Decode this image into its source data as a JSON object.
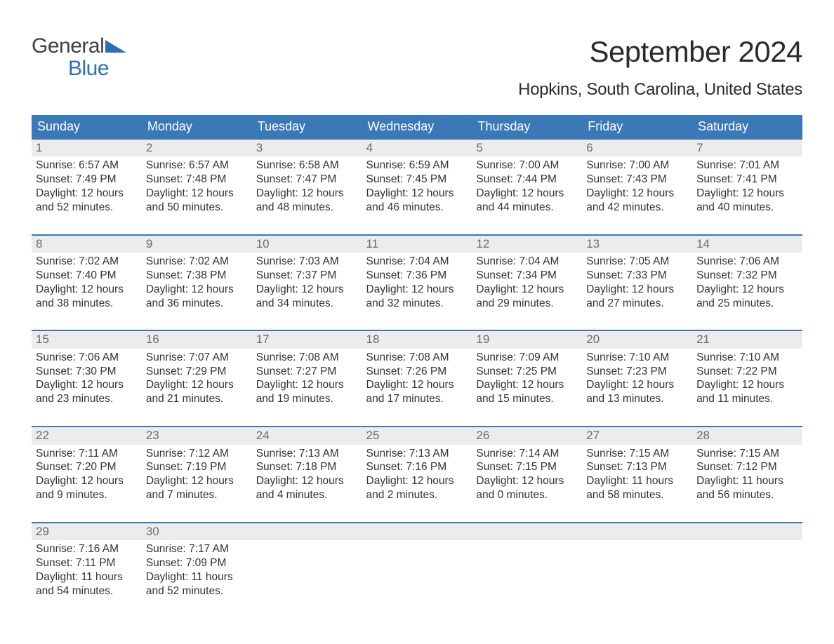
{
  "logo": {
    "line1": "General",
    "line2": "Blue",
    "accent_color": "#2d6fb3",
    "text_color": "#414141"
  },
  "title": "September 2024",
  "location": "Hopkins, South Carolina, United States",
  "colors": {
    "header_bg": "#3a78b8",
    "header_fg": "#ffffff",
    "daynum_bg": "#ececec",
    "daynum_fg": "#6b6b6b",
    "rule": "#3a78b8",
    "body_text": "#333333"
  },
  "day_headers": [
    "Sunday",
    "Monday",
    "Tuesday",
    "Wednesday",
    "Thursday",
    "Friday",
    "Saturday"
  ],
  "weeks": [
    [
      {
        "n": "1",
        "sunrise": "Sunrise: 6:57 AM",
        "sunset": "Sunset: 7:49 PM",
        "d1": "Daylight: 12 hours",
        "d2": "and 52 minutes."
      },
      {
        "n": "2",
        "sunrise": "Sunrise: 6:57 AM",
        "sunset": "Sunset: 7:48 PM",
        "d1": "Daylight: 12 hours",
        "d2": "and 50 minutes."
      },
      {
        "n": "3",
        "sunrise": "Sunrise: 6:58 AM",
        "sunset": "Sunset: 7:47 PM",
        "d1": "Daylight: 12 hours",
        "d2": "and 48 minutes."
      },
      {
        "n": "4",
        "sunrise": "Sunrise: 6:59 AM",
        "sunset": "Sunset: 7:45 PM",
        "d1": "Daylight: 12 hours",
        "d2": "and 46 minutes."
      },
      {
        "n": "5",
        "sunrise": "Sunrise: 7:00 AM",
        "sunset": "Sunset: 7:44 PM",
        "d1": "Daylight: 12 hours",
        "d2": "and 44 minutes."
      },
      {
        "n": "6",
        "sunrise": "Sunrise: 7:00 AM",
        "sunset": "Sunset: 7:43 PM",
        "d1": "Daylight: 12 hours",
        "d2": "and 42 minutes."
      },
      {
        "n": "7",
        "sunrise": "Sunrise: 7:01 AM",
        "sunset": "Sunset: 7:41 PM",
        "d1": "Daylight: 12 hours",
        "d2": "and 40 minutes."
      }
    ],
    [
      {
        "n": "8",
        "sunrise": "Sunrise: 7:02 AM",
        "sunset": "Sunset: 7:40 PM",
        "d1": "Daylight: 12 hours",
        "d2": "and 38 minutes."
      },
      {
        "n": "9",
        "sunrise": "Sunrise: 7:02 AM",
        "sunset": "Sunset: 7:38 PM",
        "d1": "Daylight: 12 hours",
        "d2": "and 36 minutes."
      },
      {
        "n": "10",
        "sunrise": "Sunrise: 7:03 AM",
        "sunset": "Sunset: 7:37 PM",
        "d1": "Daylight: 12 hours",
        "d2": "and 34 minutes."
      },
      {
        "n": "11",
        "sunrise": "Sunrise: 7:04 AM",
        "sunset": "Sunset: 7:36 PM",
        "d1": "Daylight: 12 hours",
        "d2": "and 32 minutes."
      },
      {
        "n": "12",
        "sunrise": "Sunrise: 7:04 AM",
        "sunset": "Sunset: 7:34 PM",
        "d1": "Daylight: 12 hours",
        "d2": "and 29 minutes."
      },
      {
        "n": "13",
        "sunrise": "Sunrise: 7:05 AM",
        "sunset": "Sunset: 7:33 PM",
        "d1": "Daylight: 12 hours",
        "d2": "and 27 minutes."
      },
      {
        "n": "14",
        "sunrise": "Sunrise: 7:06 AM",
        "sunset": "Sunset: 7:32 PM",
        "d1": "Daylight: 12 hours",
        "d2": "and 25 minutes."
      }
    ],
    [
      {
        "n": "15",
        "sunrise": "Sunrise: 7:06 AM",
        "sunset": "Sunset: 7:30 PM",
        "d1": "Daylight: 12 hours",
        "d2": "and 23 minutes."
      },
      {
        "n": "16",
        "sunrise": "Sunrise: 7:07 AM",
        "sunset": "Sunset: 7:29 PM",
        "d1": "Daylight: 12 hours",
        "d2": "and 21 minutes."
      },
      {
        "n": "17",
        "sunrise": "Sunrise: 7:08 AM",
        "sunset": "Sunset: 7:27 PM",
        "d1": "Daylight: 12 hours",
        "d2": "and 19 minutes."
      },
      {
        "n": "18",
        "sunrise": "Sunrise: 7:08 AM",
        "sunset": "Sunset: 7:26 PM",
        "d1": "Daylight: 12 hours",
        "d2": "and 17 minutes."
      },
      {
        "n": "19",
        "sunrise": "Sunrise: 7:09 AM",
        "sunset": "Sunset: 7:25 PM",
        "d1": "Daylight: 12 hours",
        "d2": "and 15 minutes."
      },
      {
        "n": "20",
        "sunrise": "Sunrise: 7:10 AM",
        "sunset": "Sunset: 7:23 PM",
        "d1": "Daylight: 12 hours",
        "d2": "and 13 minutes."
      },
      {
        "n": "21",
        "sunrise": "Sunrise: 7:10 AM",
        "sunset": "Sunset: 7:22 PM",
        "d1": "Daylight: 12 hours",
        "d2": "and 11 minutes."
      }
    ],
    [
      {
        "n": "22",
        "sunrise": "Sunrise: 7:11 AM",
        "sunset": "Sunset: 7:20 PM",
        "d1": "Daylight: 12 hours",
        "d2": "and 9 minutes."
      },
      {
        "n": "23",
        "sunrise": "Sunrise: 7:12 AM",
        "sunset": "Sunset: 7:19 PM",
        "d1": "Daylight: 12 hours",
        "d2": "and 7 minutes."
      },
      {
        "n": "24",
        "sunrise": "Sunrise: 7:13 AM",
        "sunset": "Sunset: 7:18 PM",
        "d1": "Daylight: 12 hours",
        "d2": "and 4 minutes."
      },
      {
        "n": "25",
        "sunrise": "Sunrise: 7:13 AM",
        "sunset": "Sunset: 7:16 PM",
        "d1": "Daylight: 12 hours",
        "d2": "and 2 minutes."
      },
      {
        "n": "26",
        "sunrise": "Sunrise: 7:14 AM",
        "sunset": "Sunset: 7:15 PM",
        "d1": "Daylight: 12 hours",
        "d2": "and 0 minutes."
      },
      {
        "n": "27",
        "sunrise": "Sunrise: 7:15 AM",
        "sunset": "Sunset: 7:13 PM",
        "d1": "Daylight: 11 hours",
        "d2": "and 58 minutes."
      },
      {
        "n": "28",
        "sunrise": "Sunrise: 7:15 AM",
        "sunset": "Sunset: 7:12 PM",
        "d1": "Daylight: 11 hours",
        "d2": "and 56 minutes."
      }
    ],
    [
      {
        "n": "29",
        "sunrise": "Sunrise: 7:16 AM",
        "sunset": "Sunset: 7:11 PM",
        "d1": "Daylight: 11 hours",
        "d2": "and 54 minutes."
      },
      {
        "n": "30",
        "sunrise": "Sunrise: 7:17 AM",
        "sunset": "Sunset: 7:09 PM",
        "d1": "Daylight: 11 hours",
        "d2": "and 52 minutes."
      },
      null,
      null,
      null,
      null,
      null
    ]
  ]
}
